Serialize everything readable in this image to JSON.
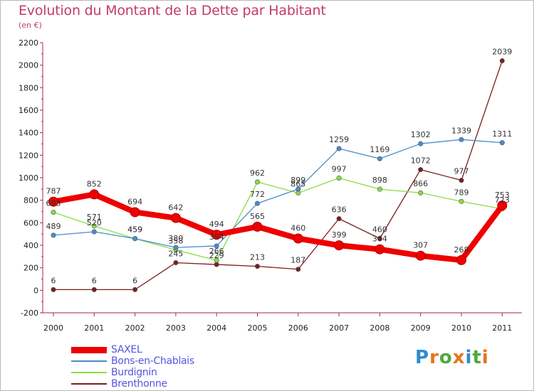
{
  "title": "Evolution du Montant de la Dette par Habitant",
  "subtitle": "(en €)",
  "logo": {
    "letters": [
      "P",
      "r",
      "o",
      "x",
      "i",
      "t",
      "i"
    ],
    "colors": [
      "#2e8bd1",
      "#e8731a",
      "#4ea83b",
      "#e8731a",
      "#2e8bd1",
      "#4ea83b",
      "#e8731a"
    ]
  },
  "chart_data": {
    "type": "line",
    "x": [
      "2000",
      "2001",
      "2002",
      "2003",
      "2004",
      "2005",
      "2006",
      "2007",
      "2008",
      "2009",
      "2010",
      "2011"
    ],
    "ylim": [
      -200,
      2200
    ],
    "yticks": [
      -200,
      0,
      200,
      400,
      600,
      800,
      1000,
      1200,
      1400,
      1600,
      1800,
      2000,
      2200
    ],
    "grid": false,
    "legend_position": "bottom-left",
    "series": [
      {
        "name": "SAXEL",
        "color": "#ee0000",
        "values": [
          787,
          852,
          694,
          642,
          494,
          565,
          460,
          399,
          364,
          307,
          268,
          753
        ]
      },
      {
        "name": "Bons-en-Chablais",
        "color": "#4a8ccc",
        "values": [
          489,
          520,
          459,
          380,
          394,
          772,
          899,
          1259,
          1169,
          1302,
          1339,
          1311
        ]
      },
      {
        "name": "Burdignin",
        "color": "#88dd44",
        "values": [
          693,
          571,
          459,
          358,
          266,
          962,
          865,
          997,
          898,
          866,
          789,
          723
        ]
      },
      {
        "name": "Brenthonne",
        "color": "#7a1f1f",
        "values": [
          6,
          6,
          6,
          245,
          229,
          213,
          187,
          636,
          460,
          1072,
          977,
          2039
        ]
      }
    ],
    "data_labels": [
      [
        "787",
        "852",
        "694",
        "642",
        "494",
        "565",
        "460",
        "399",
        "364",
        "307",
        "268",
        "753"
      ],
      [
        "489",
        "520",
        "459",
        "380",
        "394",
        "772",
        "899",
        "1259",
        "1169",
        "1302",
        "1339",
        "1311"
      ],
      [
        "693",
        "571",
        "459",
        "358",
        "266",
        "962",
        "865",
        "997",
        "898",
        "866",
        "789",
        "723"
      ],
      [
        "6",
        "6",
        "6",
        "245",
        "229",
        "213",
        "187",
        "636",
        "460",
        "1072",
        "977",
        "2039"
      ]
    ]
  }
}
